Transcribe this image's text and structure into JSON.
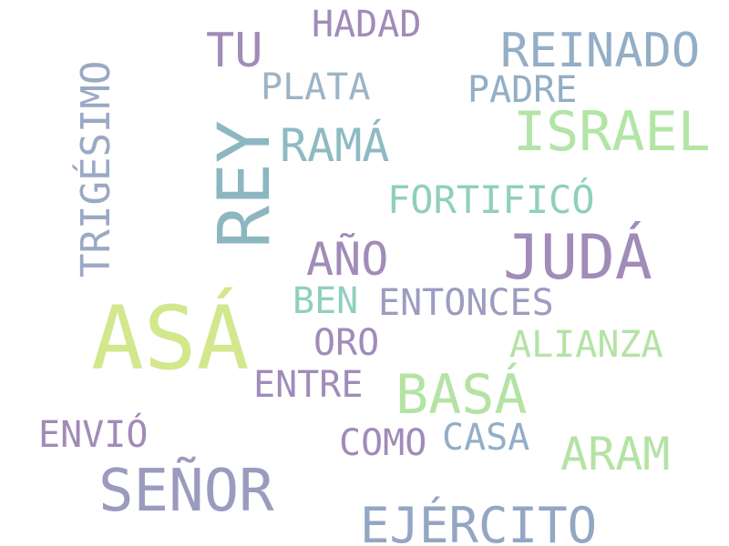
{
  "words": [
    {
      "id": "asa",
      "text": "ASÁ",
      "color": "#d3e78d"
    },
    {
      "id": "rey",
      "text": "REY",
      "color": "#8db7c0"
    },
    {
      "id": "juda",
      "text": "JUDÁ",
      "color": "#a18bb8"
    },
    {
      "id": "senor",
      "text": "SEÑOR",
      "color": "#9b9bbf"
    },
    {
      "id": "basa",
      "text": "BASÁ",
      "color": "#b4e3a4"
    },
    {
      "id": "israel",
      "text": "ISRAEL",
      "color": "#b2e5a6"
    },
    {
      "id": "trigesimo",
      "text": "TRIGÉSIMO",
      "color": "#9aa9c4"
    },
    {
      "id": "reinado",
      "text": "REINADO",
      "color": "#93aec6"
    },
    {
      "id": "ejercito",
      "text": "EJÉRCITO",
      "color": "#93a6c4"
    },
    {
      "id": "ano",
      "text": "AÑO",
      "color": "#a18bb8"
    },
    {
      "id": "rama",
      "text": "RAMÁ",
      "color": "#8fbac2"
    },
    {
      "id": "fortifico",
      "text": "FORTIFICÓ",
      "color": "#8fcfbe"
    },
    {
      "id": "aram",
      "text": "ARAM",
      "color": "#b4e3a4"
    },
    {
      "id": "tu",
      "text": "TU",
      "color": "#a18bb8"
    },
    {
      "id": "hadad",
      "text": "HADAD",
      "color": "#a18bb8"
    },
    {
      "id": "plata",
      "text": "PLATA",
      "color": "#9cb4c6"
    },
    {
      "id": "padre",
      "text": "PADRE",
      "color": "#93aec6"
    },
    {
      "id": "entonces",
      "text": "ENTONCES",
      "color": "#9d9cc0"
    },
    {
      "id": "ben",
      "text": "BEN",
      "color": "#8fcfbe"
    },
    {
      "id": "oro",
      "text": "ORO",
      "color": "#a18bb8"
    },
    {
      "id": "alianza",
      "text": "ALIANZA",
      "color": "#b4e3a4"
    },
    {
      "id": "entre",
      "text": "ENTRE",
      "color": "#a18bb8"
    },
    {
      "id": "envio",
      "text": "ENVIÓ",
      "color": "#a18bb8"
    },
    {
      "id": "como",
      "text": "COMO",
      "color": "#a18bb8"
    },
    {
      "id": "casa",
      "text": "CASA",
      "color": "#93aec6"
    }
  ]
}
